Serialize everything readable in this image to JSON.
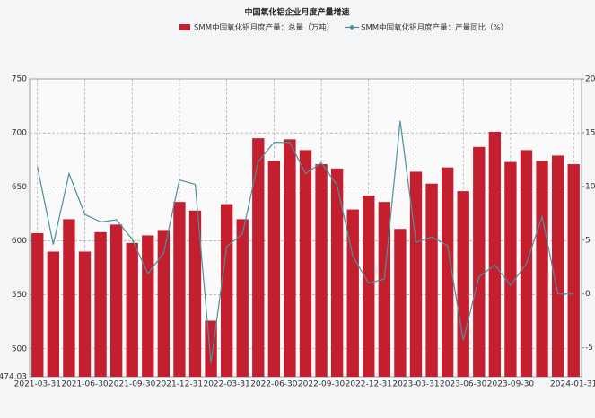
{
  "chart_data": {
    "type": "bar_line",
    "title": "中国氧化铝企业月度产量增速",
    "categories": [
      "2021-03-31",
      null,
      null,
      "2021-06-30",
      null,
      null,
      "2021-09-30",
      null,
      null,
      "2021-12-31",
      null,
      null,
      "2022-03-31",
      null,
      null,
      "2022-06-30",
      null,
      null,
      "2022-09-30",
      null,
      null,
      "2022-12-31",
      null,
      null,
      "2023-03-31",
      null,
      null,
      "2023-06-30",
      null,
      null,
      "2023-09-30",
      null,
      null,
      null,
      "2024-01-31"
    ],
    "series": [
      {
        "name": "SMM中国氧化铝月度产量：总量（万吨）",
        "type": "bar",
        "color": "#c31f2e",
        "axis": "y",
        "values": [
          607,
          590,
          620,
          590,
          608,
          615,
          598,
          605,
          610,
          636,
          628,
          526,
          634,
          620,
          695,
          674,
          694,
          684,
          671,
          667,
          629,
          642,
          636,
          611,
          664,
          653,
          668,
          646,
          687,
          701,
          673,
          684,
          674,
          679,
          671
        ]
      },
      {
        "name": "SMM中国氧化铝月度产量：产量同比（%）",
        "type": "line",
        "color": "#4f8f9c",
        "axis": "y2",
        "values": [
          11.8,
          4.6,
          11.2,
          7.4,
          6.7,
          6.9,
          5.1,
          1.9,
          3.8,
          10.6,
          10.2,
          -6.4,
          4.4,
          5.6,
          12.3,
          14.1,
          14.1,
          11.2,
          12.2,
          10.1,
          3.5,
          1.0,
          1.4,
          16.1,
          4.8,
          5.3,
          4.5,
          -4.3,
          1.6,
          2.7,
          0.8,
          2.8,
          7.2,
          0,
          0
        ]
      }
    ],
    "ylim": [
      474.03,
      750
    ],
    "yticks": [
      474.03,
      500,
      550,
      600,
      650,
      700,
      750
    ],
    "y2lim": [
      -7.7,
      20
    ],
    "y2ticks": [
      -5,
      0,
      5,
      10,
      15,
      20
    ],
    "grid": true
  }
}
